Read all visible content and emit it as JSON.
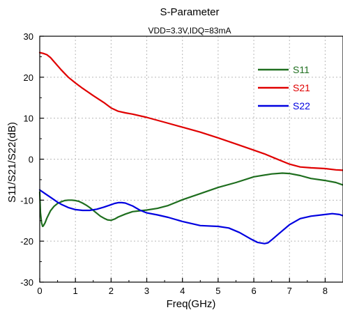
{
  "chart_data": {
    "type": "line",
    "title": "S-Parameter",
    "subtitle": "VDD=3.3V,IDQ=83mA",
    "xlabel": "Freq(GHz)",
    "ylabel": "S11/S21/S22(dB)",
    "xlim": [
      0,
      8.5
    ],
    "ylim": [
      -30,
      30
    ],
    "xticks": [
      0,
      1,
      2,
      3,
      4,
      5,
      6,
      7,
      8
    ],
    "yticks": [
      -30,
      -20,
      -10,
      0,
      10,
      20,
      30
    ],
    "grid": true,
    "legend_position": "top-right",
    "series": [
      {
        "name": "S11",
        "color": "#1e6e1e",
        "x": [
          0,
          0.02,
          0.05,
          0.08,
          0.1,
          0.15,
          0.2,
          0.3,
          0.4,
          0.5,
          0.6,
          0.7,
          0.8,
          0.9,
          1.0,
          1.1,
          1.2,
          1.3,
          1.4,
          1.5,
          1.6,
          1.7,
          1.8,
          1.9,
          2.0,
          2.1,
          2.2,
          2.4,
          2.6,
          2.8,
          3.0,
          3.3,
          3.6,
          4.0,
          4.5,
          5.0,
          5.5,
          6.0,
          6.5,
          6.8,
          7.0,
          7.3,
          7.6,
          8.0,
          8.3,
          8.5
        ],
        "y": [
          -8,
          -13,
          -15.5,
          -16.4,
          -16.3,
          -15.5,
          -14.4,
          -12.6,
          -11.5,
          -10.8,
          -10.4,
          -10.1,
          -10.0,
          -10.0,
          -10.1,
          -10.3,
          -10.7,
          -11.2,
          -11.8,
          -12.5,
          -13.2,
          -13.9,
          -14.4,
          -14.8,
          -14.9,
          -14.6,
          -14.1,
          -13.4,
          -12.8,
          -12.6,
          -12.4,
          -12.0,
          -11.3,
          -9.9,
          -8.4,
          -6.9,
          -5.7,
          -4.3,
          -3.6,
          -3.4,
          -3.5,
          -4.0,
          -4.7,
          -5.2,
          -5.7,
          -6.3
        ]
      },
      {
        "name": "S21",
        "color": "#e00000",
        "x": [
          0,
          0.1,
          0.2,
          0.3,
          0.4,
          0.6,
          0.8,
          1.0,
          1.2,
          1.5,
          1.8,
          2.0,
          2.2,
          2.4,
          2.6,
          3.0,
          3.5,
          4.0,
          4.5,
          5.0,
          5.5,
          6.0,
          6.3,
          6.6,
          7.0,
          7.3,
          7.6,
          8.0,
          8.3,
          8.5
        ],
        "y": [
          26,
          25.8,
          25.5,
          24.8,
          23.8,
          21.8,
          20.0,
          18.6,
          17.3,
          15.5,
          13.8,
          12.5,
          11.7,
          11.3,
          11.0,
          10.2,
          9.0,
          7.8,
          6.6,
          5.2,
          3.7,
          2.2,
          1.3,
          0.2,
          -1.2,
          -1.9,
          -2.1,
          -2.3,
          -2.6,
          -2.7
        ]
      },
      {
        "name": "S22",
        "color": "#0000e0",
        "x": [
          0,
          0.1,
          0.2,
          0.3,
          0.4,
          0.5,
          0.6,
          0.8,
          1.0,
          1.2,
          1.4,
          1.6,
          1.8,
          2.0,
          2.1,
          2.2,
          2.3,
          2.4,
          2.6,
          2.8,
          3.0,
          3.3,
          3.6,
          4.0,
          4.5,
          5.0,
          5.3,
          5.6,
          5.9,
          6.1,
          6.3,
          6.4,
          6.5,
          6.7,
          7.0,
          7.3,
          7.6,
          8.0,
          8.2,
          8.4,
          8.5
        ],
        "y": [
          -7.5,
          -8.1,
          -8.7,
          -9.3,
          -9.9,
          -10.5,
          -11.0,
          -11.8,
          -12.3,
          -12.5,
          -12.5,
          -12.2,
          -11.7,
          -11.1,
          -10.8,
          -10.6,
          -10.6,
          -10.7,
          -11.4,
          -12.4,
          -13.1,
          -13.6,
          -14.2,
          -15.2,
          -16.2,
          -16.4,
          -16.8,
          -17.9,
          -19.4,
          -20.3,
          -20.6,
          -20.4,
          -19.7,
          -18.2,
          -16.0,
          -14.5,
          -13.9,
          -13.5,
          -13.3,
          -13.5,
          -13.8
        ]
      }
    ]
  }
}
